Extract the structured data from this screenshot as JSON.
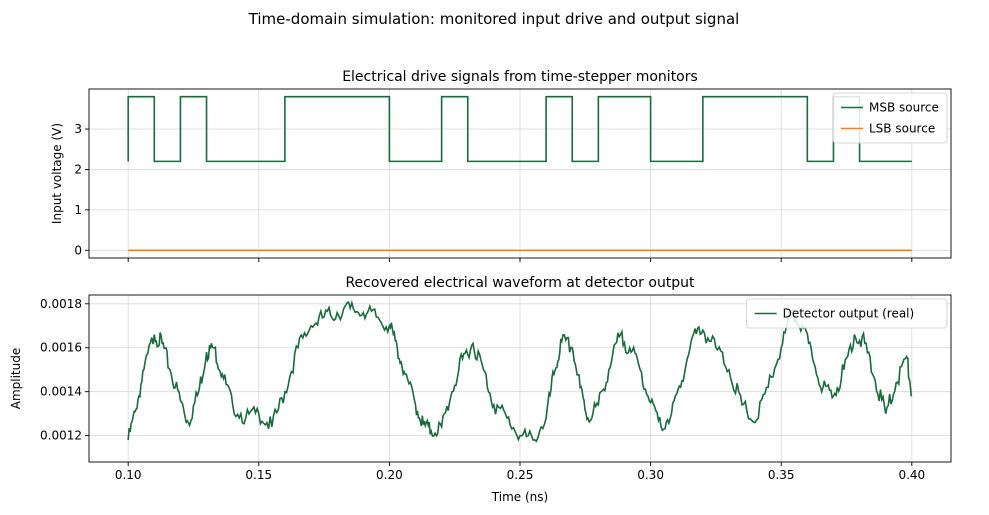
{
  "figure": {
    "suptitle": "Time-domain simulation: monitored input drive and output signal"
  },
  "colors": {
    "msb": "#1a6b3c",
    "lsb": "#ff7f0e",
    "detector": "#1a6b3c",
    "grid": "#d9d9d9",
    "axis": "#000000"
  },
  "chart_data": [
    {
      "type": "line",
      "title": "Electrical drive signals from time-stepper monitors",
      "xlabel": "",
      "ylabel": "Input voltage (V)",
      "xlim": [
        0.085,
        0.415
      ],
      "ylim": [
        -0.19,
        3.99
      ],
      "xticks": [
        0.1,
        0.15,
        0.2,
        0.25,
        0.3,
        0.35,
        0.4
      ],
      "xtick_labels_visible": false,
      "yticks": [
        0,
        1,
        2,
        3
      ],
      "ytick_labels": [
        "0",
        "1",
        "2",
        "3"
      ],
      "grid": true,
      "legend": "top-right",
      "series": [
        {
          "name": "MSB source",
          "step": true,
          "x": [
            0.1,
            0.1,
            0.11,
            0.12,
            0.13,
            0.16,
            0.2,
            0.22,
            0.23,
            0.26,
            0.27,
            0.28,
            0.3,
            0.32,
            0.36,
            0.37,
            0.38,
            0.39,
            0.4
          ],
          "y": [
            2.2,
            3.8,
            2.2,
            3.8,
            2.2,
            3.8,
            2.2,
            3.8,
            2.2,
            3.8,
            2.2,
            3.8,
            2.2,
            3.8,
            2.2,
            3.8,
            2.2,
            2.2,
            2.2
          ]
        },
        {
          "name": "LSB source",
          "x": [
            0.1,
            0.4
          ],
          "y": [
            0,
            0
          ]
        }
      ]
    },
    {
      "type": "line",
      "title": "Recovered electrical waveform at detector output",
      "xlabel": "Time (ns)",
      "ylabel": "Amplitude",
      "xlim": [
        0.085,
        0.415
      ],
      "ylim": [
        0.00108,
        0.00184
      ],
      "xticks": [
        0.1,
        0.15,
        0.2,
        0.25,
        0.3,
        0.35,
        0.4
      ],
      "xtick_labels": [
        "0.10",
        "0.15",
        "0.20",
        "0.25",
        "0.30",
        "0.35",
        "0.40"
      ],
      "yticks": [
        0.0012,
        0.0014,
        0.0016,
        0.0018
      ],
      "ytick_labels": [
        "0.0012",
        "0.0014",
        "0.0016",
        "0.0018"
      ],
      "grid": true,
      "legend": "top-right",
      "series": [
        {
          "name": "Detector output (real)",
          "x": [
            0.1,
            0.103,
            0.106,
            0.11,
            0.113,
            0.116,
            0.12,
            0.123,
            0.127,
            0.13,
            0.133,
            0.136,
            0.14,
            0.145,
            0.15,
            0.155,
            0.16,
            0.165,
            0.17,
            0.175,
            0.18,
            0.185,
            0.19,
            0.195,
            0.2,
            0.203,
            0.206,
            0.21,
            0.213,
            0.216,
            0.22,
            0.224,
            0.228,
            0.232,
            0.236,
            0.24,
            0.245,
            0.25,
            0.255,
            0.26,
            0.263,
            0.266,
            0.27,
            0.273,
            0.276,
            0.28,
            0.284,
            0.288,
            0.292,
            0.296,
            0.3,
            0.304,
            0.308,
            0.312,
            0.316,
            0.32,
            0.325,
            0.33,
            0.335,
            0.34,
            0.345,
            0.35,
            0.354,
            0.358,
            0.362,
            0.366,
            0.37,
            0.374,
            0.378,
            0.382,
            0.386,
            0.39,
            0.394,
            0.398,
            0.4
          ],
          "y": [
            0.00118,
            0.00132,
            0.0015,
            0.00166,
            0.00162,
            0.0015,
            0.00136,
            0.00126,
            0.0014,
            0.00158,
            0.0016,
            0.00148,
            0.00134,
            0.00128,
            0.0013,
            0.00124,
            0.0014,
            0.0016,
            0.0017,
            0.00174,
            0.00176,
            0.00178,
            0.00176,
            0.00174,
            0.0017,
            0.0016,
            0.00148,
            0.00134,
            0.00125,
            0.00122,
            0.00124,
            0.0014,
            0.00155,
            0.00162,
            0.0015,
            0.00134,
            0.00128,
            0.0012,
            0.00118,
            0.00128,
            0.00148,
            0.00163,
            0.0016,
            0.00142,
            0.00128,
            0.00134,
            0.0015,
            0.00165,
            0.0016,
            0.0015,
            0.00135,
            0.00124,
            0.0013,
            0.00145,
            0.00165,
            0.00168,
            0.0016,
            0.0015,
            0.00134,
            0.00126,
            0.00142,
            0.0016,
            0.00176,
            0.0017,
            0.00155,
            0.00142,
            0.00138,
            0.0015,
            0.00166,
            0.00162,
            0.00145,
            0.0013,
            0.00144,
            0.00156,
            0.00138
          ]
        }
      ]
    }
  ]
}
